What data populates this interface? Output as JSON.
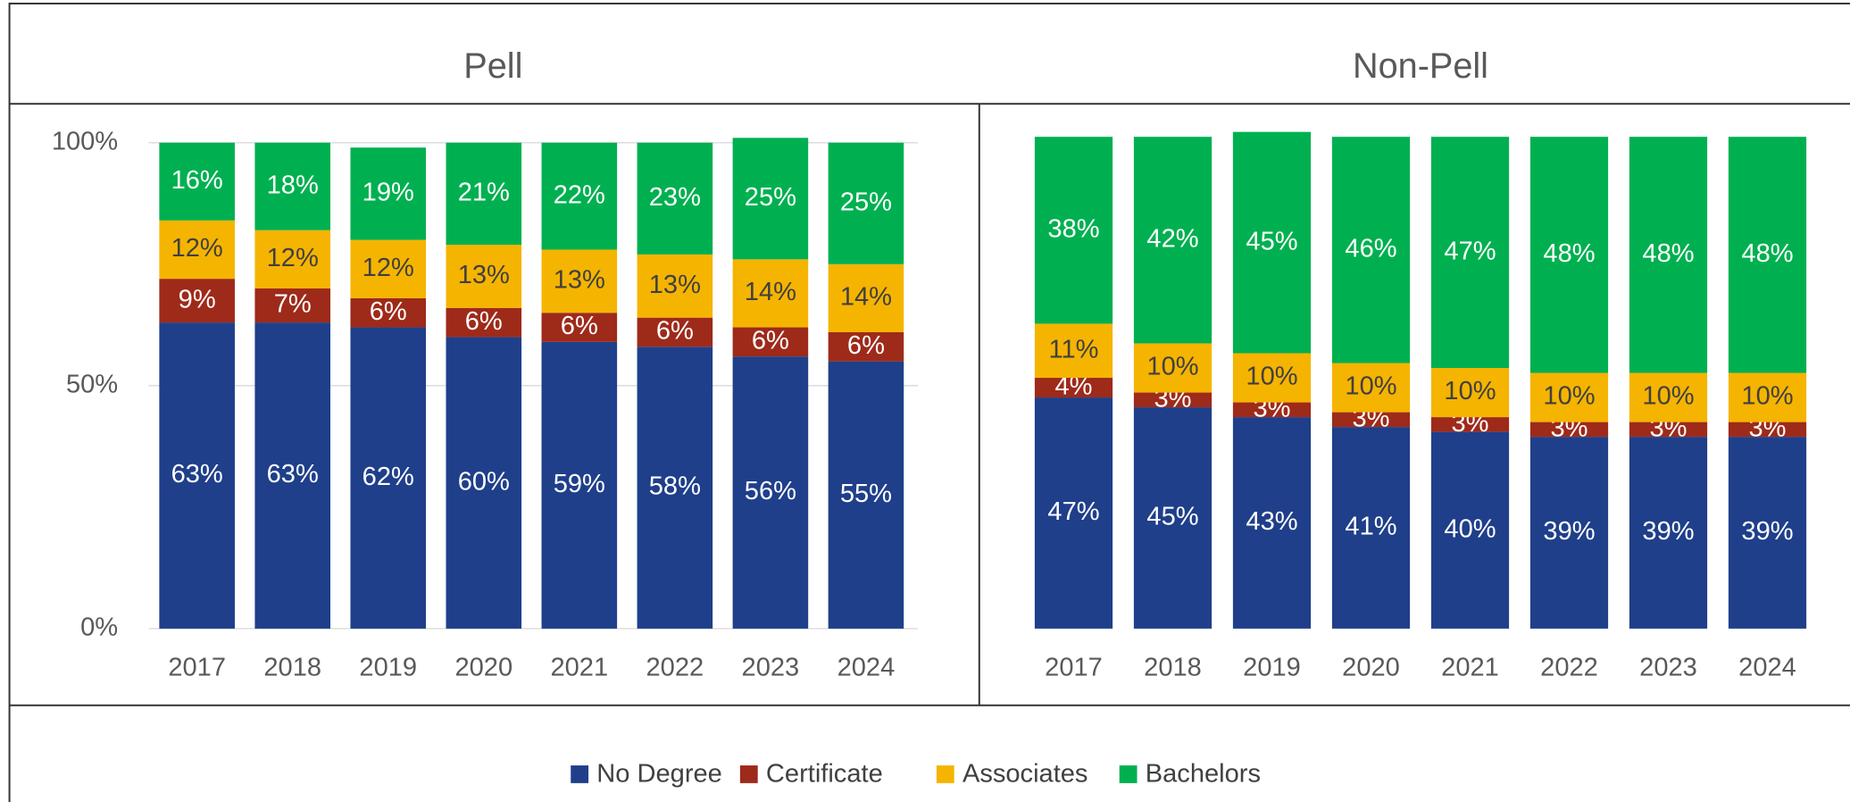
{
  "chart_data": [
    {
      "type": "bar",
      "stacked": true,
      "title": "Pell",
      "categories": [
        "2017",
        "2018",
        "2019",
        "2020",
        "2021",
        "2022",
        "2023",
        "2024"
      ],
      "series": [
        {
          "name": "No Degree",
          "color": "#1f3f8a",
          "values": [
            63,
            63,
            62,
            60,
            59,
            58,
            56,
            55
          ],
          "value_labels": [
            "63%",
            "63%",
            "62%",
            "60%",
            "59%",
            "58%",
            "56%",
            "55%"
          ]
        },
        {
          "name": "Certificate",
          "color": "#9e2a1a",
          "values": [
            9,
            7,
            6,
            6,
            6,
            6,
            6,
            6
          ],
          "value_labels": [
            "9%",
            "7%",
            "6%",
            "6%",
            "6%",
            "6%",
            "6%",
            "6%"
          ]
        },
        {
          "name": "Associates",
          "color": "#f5b400",
          "values": [
            12,
            12,
            12,
            13,
            13,
            13,
            14,
            14
          ],
          "value_labels": [
            "12%",
            "12%",
            "12%",
            "13%",
            "13%",
            "13%",
            "14%",
            "14%"
          ]
        },
        {
          "name": "Bachelors",
          "color": "#00b050",
          "values": [
            16,
            18,
            19,
            21,
            22,
            23,
            25,
            25
          ],
          "value_labels": [
            "16%",
            "18%",
            "19%",
            "21%",
            "22%",
            "23%",
            "25%",
            "25%"
          ]
        }
      ],
      "ylim": [
        0,
        100
      ],
      "yticks": [
        {
          "value": 0,
          "label": "0%"
        },
        {
          "value": 50,
          "label": "50%"
        },
        {
          "value": 100,
          "label": "100%"
        }
      ],
      "grid": true,
      "legend": "bottom"
    },
    {
      "type": "bar",
      "stacked": true,
      "title": "Non-Pell",
      "categories": [
        "2017",
        "2018",
        "2019",
        "2020",
        "2021",
        "2022",
        "2023",
        "2024"
      ],
      "series": [
        {
          "name": "No Degree",
          "color": "#1f3f8a",
          "values": [
            47,
            45,
            43,
            41,
            40,
            39,
            39,
            39
          ],
          "value_labels": [
            "47%",
            "45%",
            "43%",
            "41%",
            "40%",
            "39%",
            "39%",
            "39%"
          ]
        },
        {
          "name": "Certificate",
          "color": "#9e2a1a",
          "values": [
            4,
            3,
            3,
            3,
            3,
            3,
            3,
            3
          ],
          "value_labels": [
            "4%",
            "3%",
            "3%",
            "3%",
            "3%",
            "3%",
            "3%",
            "3%"
          ]
        },
        {
          "name": "Associates",
          "color": "#f5b400",
          "values": [
            11,
            10,
            10,
            10,
            10,
            10,
            10,
            10
          ],
          "value_labels": [
            "11%",
            "10%",
            "10%",
            "10%",
            "10%",
            "10%",
            "10%",
            "10%"
          ]
        },
        {
          "name": "Bachelors",
          "color": "#00b050",
          "values": [
            38,
            42,
            45,
            46,
            47,
            48,
            48,
            48
          ],
          "value_labels": [
            "38%",
            "42%",
            "45%",
            "46%",
            "47%",
            "48%",
            "48%",
            "48%"
          ]
        }
      ],
      "ylim": [
        0,
        100
      ],
      "grid": false,
      "legend": "bottom"
    }
  ]
}
